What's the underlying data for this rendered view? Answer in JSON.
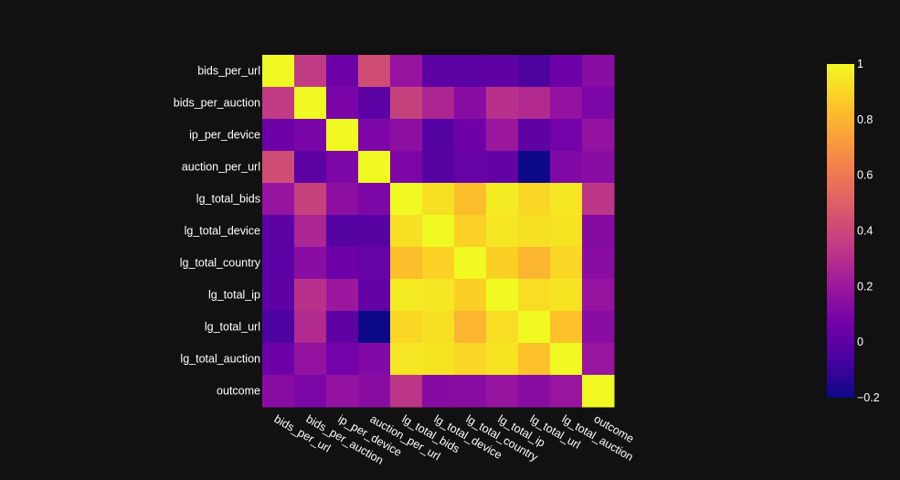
{
  "chart_data": {
    "type": "heatmap",
    "title": "",
    "xlabel": "",
    "ylabel": "",
    "labels": [
      "bids_per_url",
      "bids_per_auction",
      "ip_per_device",
      "auction_per_url",
      "lg_total_bids",
      "lg_total_device",
      "lg_total_country",
      "lg_total_ip",
      "lg_total_url",
      "lg_total_auction",
      "outcome"
    ],
    "z": [
      [
        1.0,
        0.35,
        0.05,
        0.42,
        0.18,
        0.0,
        0.0,
        0.01,
        -0.05,
        0.05,
        0.14
      ],
      [
        0.35,
        1.0,
        0.09,
        0.0,
        0.38,
        0.26,
        0.14,
        0.31,
        0.28,
        0.17,
        0.1
      ],
      [
        0.05,
        0.09,
        1.0,
        0.1,
        0.15,
        -0.02,
        0.05,
        0.2,
        0.01,
        0.07,
        0.17
      ],
      [
        0.42,
        0.0,
        0.1,
        1.0,
        0.1,
        -0.01,
        0.03,
        0.02,
        -0.2,
        0.11,
        0.14
      ],
      [
        0.18,
        0.38,
        0.15,
        0.1,
        1.0,
        0.93,
        0.83,
        0.96,
        0.9,
        0.95,
        0.33
      ],
      [
        0.0,
        0.26,
        -0.02,
        -0.01,
        0.93,
        1.0,
        0.89,
        0.95,
        0.93,
        0.94,
        0.13
      ],
      [
        0.0,
        0.14,
        0.05,
        0.03,
        0.83,
        0.89,
        1.0,
        0.88,
        0.8,
        0.9,
        0.14
      ],
      [
        0.01,
        0.31,
        0.2,
        0.02,
        0.96,
        0.95,
        0.88,
        1.0,
        0.92,
        0.94,
        0.18
      ],
      [
        -0.05,
        0.28,
        0.01,
        -0.2,
        0.9,
        0.93,
        0.8,
        0.92,
        1.0,
        0.84,
        0.14
      ],
      [
        0.05,
        0.17,
        0.07,
        0.11,
        0.95,
        0.94,
        0.9,
        0.94,
        0.84,
        1.0,
        0.19
      ],
      [
        0.14,
        0.1,
        0.17,
        0.14,
        0.33,
        0.13,
        0.14,
        0.18,
        0.14,
        0.19,
        1.0
      ]
    ],
    "zmin": -0.2,
    "zmax": 1,
    "colorscale": "plasma",
    "colorbar_ticks": [
      "1",
      "0.8",
      "0.6",
      "0.4",
      "0.2",
      "0",
      "−0.2"
    ],
    "colorbar_tick_values": [
      1,
      0.8,
      0.6,
      0.4,
      0.2,
      0,
      -0.2
    ],
    "background": "#111111",
    "text_color": "#ffffff"
  }
}
